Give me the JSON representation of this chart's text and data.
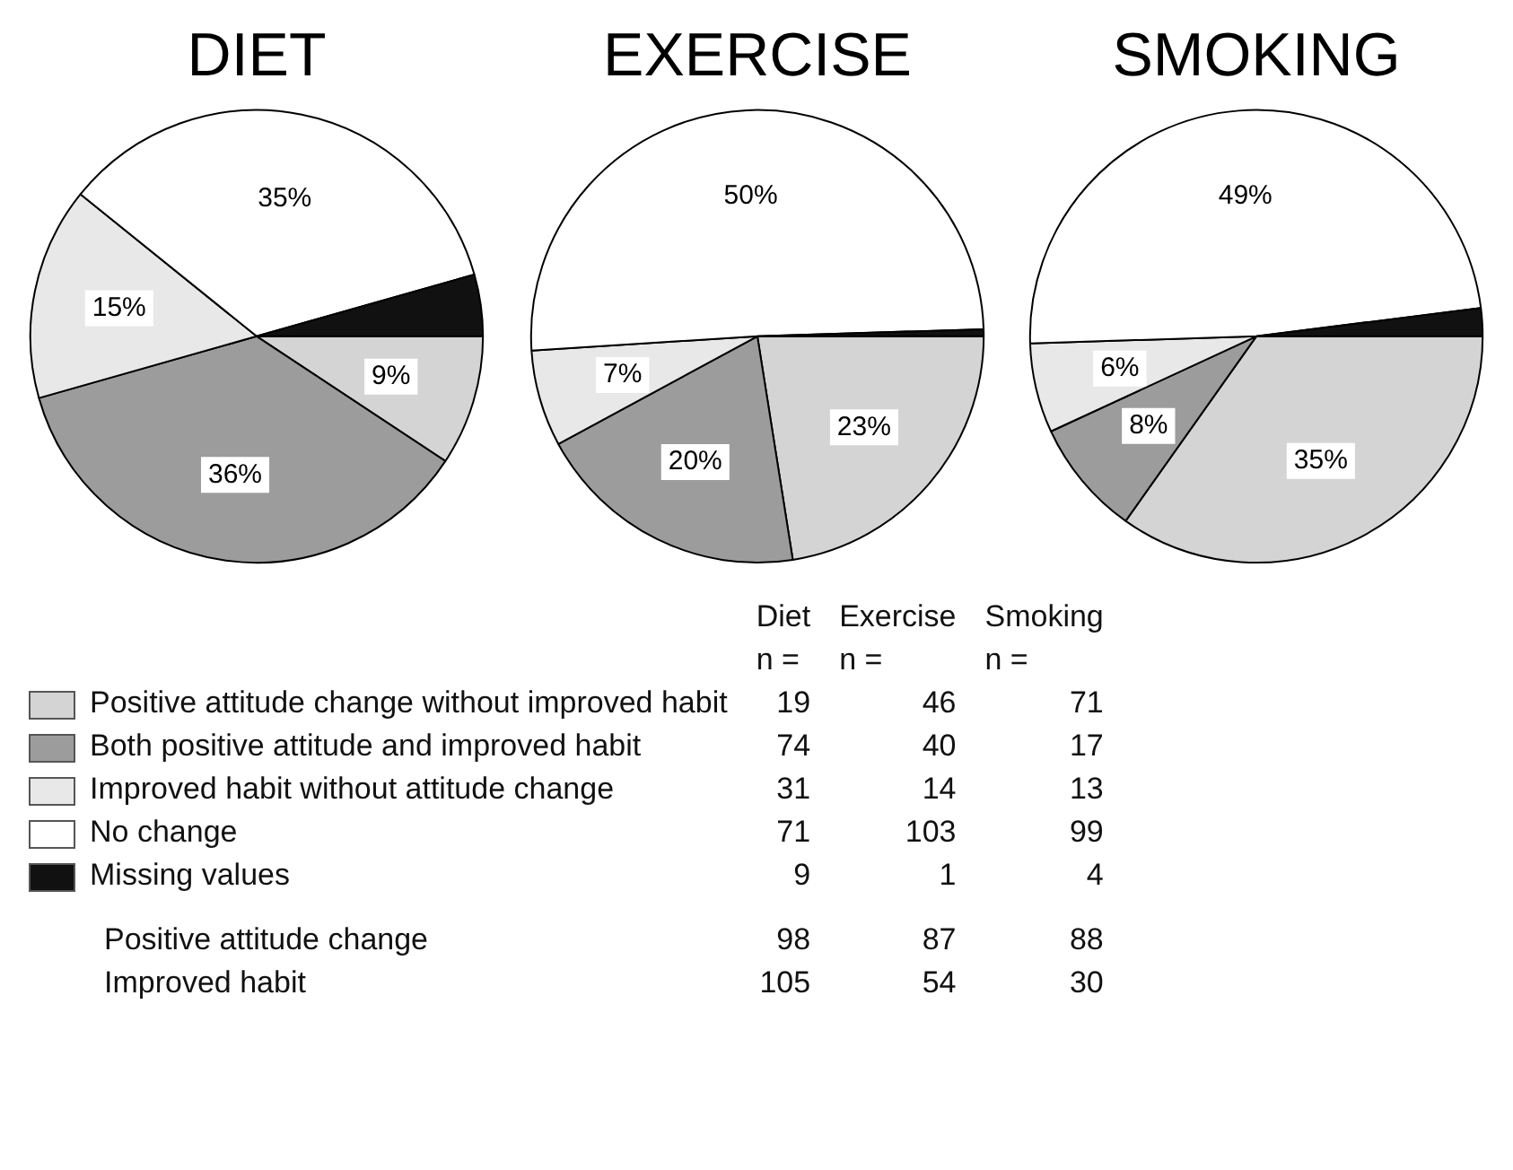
{
  "chart_data": [
    {
      "type": "pie",
      "title": "DIET",
      "values": [
        9.3,
        36.3,
        15.2,
        34.8,
        4.4
      ],
      "value_labels": [
        "9%",
        "36%",
        "15%",
        "35%",
        null
      ],
      "colors": [
        "#d4d4d4",
        "#9c9c9c",
        "#e8e8e8",
        "#ffffff",
        "#111111"
      ]
    },
    {
      "type": "pie",
      "title": "EXERCISE",
      "values": [
        22.5,
        19.6,
        6.9,
        50.5,
        0.5
      ],
      "value_labels": [
        "23%",
        "20%",
        "7%",
        "50%",
        null
      ],
      "colors": [
        "#d4d4d4",
        "#9c9c9c",
        "#e8e8e8",
        "#ffffff",
        "#111111"
      ]
    },
    {
      "type": "pie",
      "title": "SMOKING",
      "values": [
        34.8,
        8.3,
        6.4,
        48.5,
        2.0
      ],
      "value_labels": [
        "35%",
        "8%",
        "6%",
        "49%",
        null
      ],
      "colors": [
        "#d4d4d4",
        "#9c9c9c",
        "#e8e8e8",
        "#ffffff",
        "#111111"
      ]
    },
    {
      "type": "other",
      "ylabel": "n =",
      "categories": [
        "Positive attitude change without improved habit",
        "Both positive attitude and improved habit",
        "Improved habit without attitude change",
        "No change",
        "Missing values",
        "Positive attitude change",
        "Improved habit"
      ],
      "colors": [
        "#d4d4d4",
        "#9c9c9c",
        "#e8e8e8",
        "#ffffff",
        "#111111",
        null,
        null
      ],
      "series": [
        {
          "name": "Diet",
          "values": [
            19,
            74,
            31,
            71,
            9,
            98,
            105
          ]
        },
        {
          "name": "Exercise",
          "values": [
            46,
            40,
            14,
            103,
            1,
            87,
            54
          ]
        },
        {
          "name": "Smoking",
          "values": [
            71,
            17,
            13,
            99,
            4,
            88,
            30
          ]
        }
      ],
      "data_labels": true
    }
  ]
}
